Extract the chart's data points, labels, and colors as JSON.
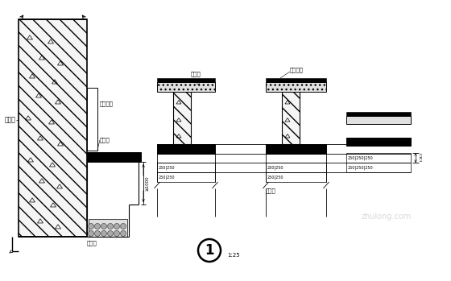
{
  "bg": "#ffffff",
  "lc": "#000000",
  "labels": {
    "retaining_wall": "挡土墙",
    "drainage_frame": "集水框架",
    "drain_pipe": "疏水管",
    "sump": "集水井",
    "drainage_trough": "疏水沟",
    "slab": "楼",
    "drainage_layer": "疏水层",
    "cushion_layer": "素砼垫层",
    "figure_num": "1",
    "scale": "1:25",
    "dim_label": "≥1000",
    "layer_height": "层\n高"
  }
}
